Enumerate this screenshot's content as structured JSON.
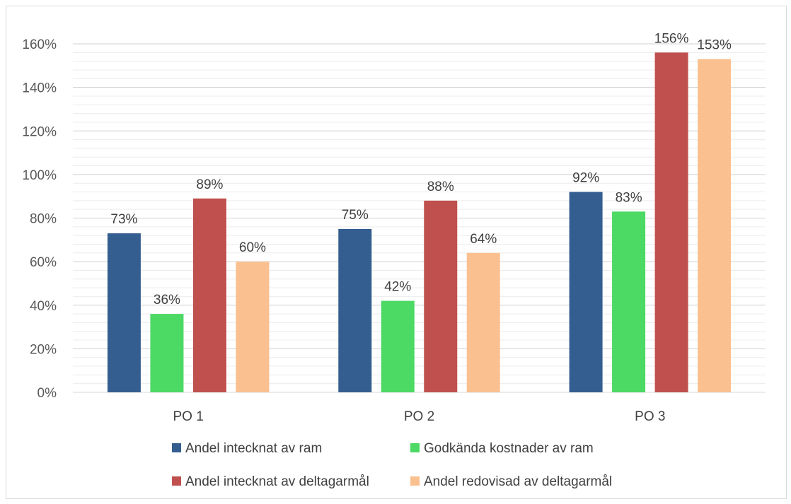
{
  "chart_data": {
    "type": "bar",
    "categories": [
      "PO 1",
      "PO 2",
      "PO 3"
    ],
    "ylim": [
      0,
      160
    ],
    "yticks": [
      "0%",
      "20%",
      "40%",
      "60%",
      "80%",
      "100%",
      "120%",
      "140%",
      "160%"
    ],
    "ytick_values": [
      0,
      20,
      40,
      60,
      80,
      100,
      120,
      140,
      160
    ],
    "grid": true,
    "legend_position": "bottom",
    "series": [
      {
        "name": "Andel intecknat av ram",
        "color": "#355E90",
        "values": [
          73,
          75,
          92
        ],
        "labels": [
          "73%",
          "75%",
          "92%"
        ]
      },
      {
        "name": "Godkända kostnader av ram",
        "color": "#4CD964",
        "values": [
          36,
          42,
          83
        ],
        "labels": [
          "36%",
          "42%",
          "83%"
        ]
      },
      {
        "name": "Andel intecknat av deltagarmål",
        "color": "#C0504D",
        "values": [
          89,
          88,
          156
        ],
        "labels": [
          "89%",
          "88%",
          "156%"
        ]
      },
      {
        "name": "Andel redovisad av deltagarmål",
        "color": "#FAC090",
        "values": [
          60,
          64,
          153
        ],
        "labels": [
          "60%",
          "64%",
          "153%"
        ]
      }
    ]
  }
}
